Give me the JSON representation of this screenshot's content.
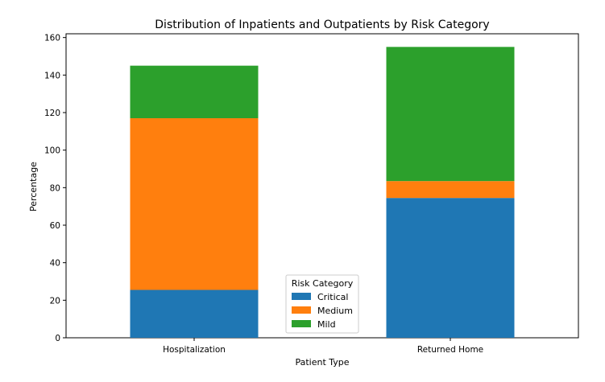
{
  "chart_data": {
    "type": "bar",
    "stacked": true,
    "title": "Distribution of Inpatients and Outpatients by Risk Category",
    "xlabel": "Patient Type",
    "ylabel": "Percentage",
    "categories": [
      "Hospitalization",
      "Returned Home"
    ],
    "series": [
      {
        "name": "Critical",
        "values": [
          25.5,
          74.5
        ],
        "color": "#1f77b4"
      },
      {
        "name": "Medium",
        "values": [
          91.5,
          9.0
        ],
        "color": "#ff7f0e"
      },
      {
        "name": "Mild",
        "values": [
          28.0,
          71.5
        ],
        "color": "#2ca02c"
      }
    ],
    "ylim": [
      0,
      162
    ],
    "yticks": [
      0,
      20,
      40,
      60,
      80,
      100,
      120,
      140,
      160
    ],
    "grid": false,
    "legend": {
      "title": "Risk Category",
      "placement": "lower center"
    }
  }
}
